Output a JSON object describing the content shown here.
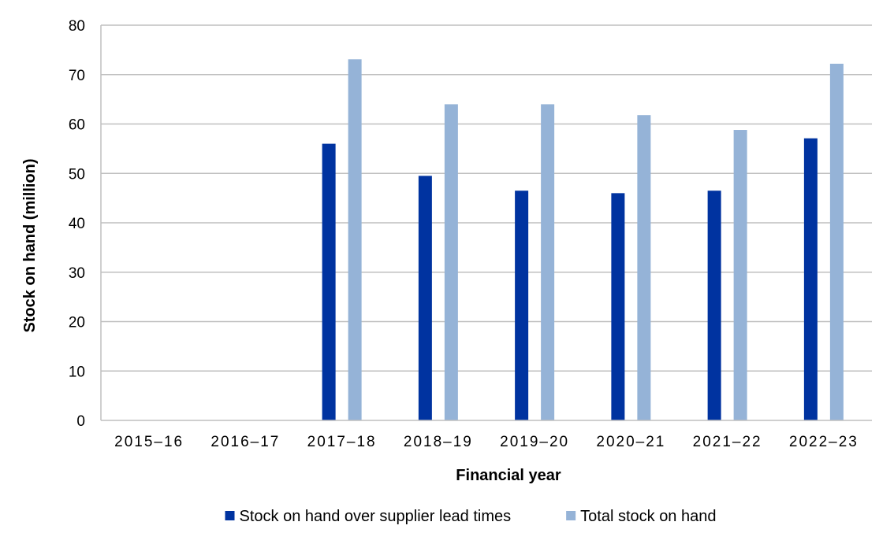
{
  "chart_data": {
    "type": "bar",
    "title": "",
    "xlabel": "Financial year",
    "ylabel": "Stock on hand (million)",
    "ylim": [
      0,
      80
    ],
    "yticks": [
      0,
      10,
      20,
      30,
      40,
      50,
      60,
      70,
      80
    ],
    "grid": "horizontal",
    "legend_position": "bottom",
    "categories": [
      "2015–16",
      "2016–17",
      "2017–18",
      "2018–19",
      "2019–20",
      "2020–21",
      "2021–22",
      "2022–23"
    ],
    "series": [
      {
        "name": "Stock on hand over supplier lead times",
        "color": "#0033A0",
        "values": [
          null,
          null,
          56.0,
          49.5,
          46.5,
          46.0,
          46.5,
          57.1
        ]
      },
      {
        "name": "Total stock on hand",
        "color": "#95B3D7",
        "values": [
          null,
          null,
          73.1,
          64.0,
          64.0,
          61.8,
          58.8,
          72.2
        ]
      }
    ]
  }
}
